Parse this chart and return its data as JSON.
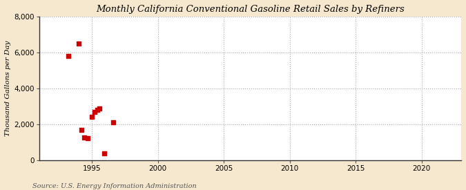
{
  "title": "Monthly California Conventional Gasoline Retail Sales by Refiners",
  "ylabel": "Thousand Gallons per Day",
  "source": "Source: U.S. Energy Information Administration",
  "background_color": "#f5e8ce",
  "plot_bg_color": "#ffffff",
  "marker_color": "#cc0000",
  "marker_size": 4,
  "xlim": [
    1991,
    2023
  ],
  "ylim": [
    0,
    8000
  ],
  "yticks": [
    0,
    2000,
    4000,
    6000,
    8000
  ],
  "xticks": [
    1995,
    2000,
    2005,
    2010,
    2015,
    2020
  ],
  "data_x": [
    1993.2,
    1994.0,
    1994.2,
    1994.45,
    1994.7,
    1995.0,
    1995.2,
    1995.4,
    1995.6,
    1995.95,
    1996.6
  ],
  "data_y": [
    5820,
    6500,
    1700,
    1260,
    1220,
    2400,
    2700,
    2820,
    2880,
    390,
    2100
  ]
}
